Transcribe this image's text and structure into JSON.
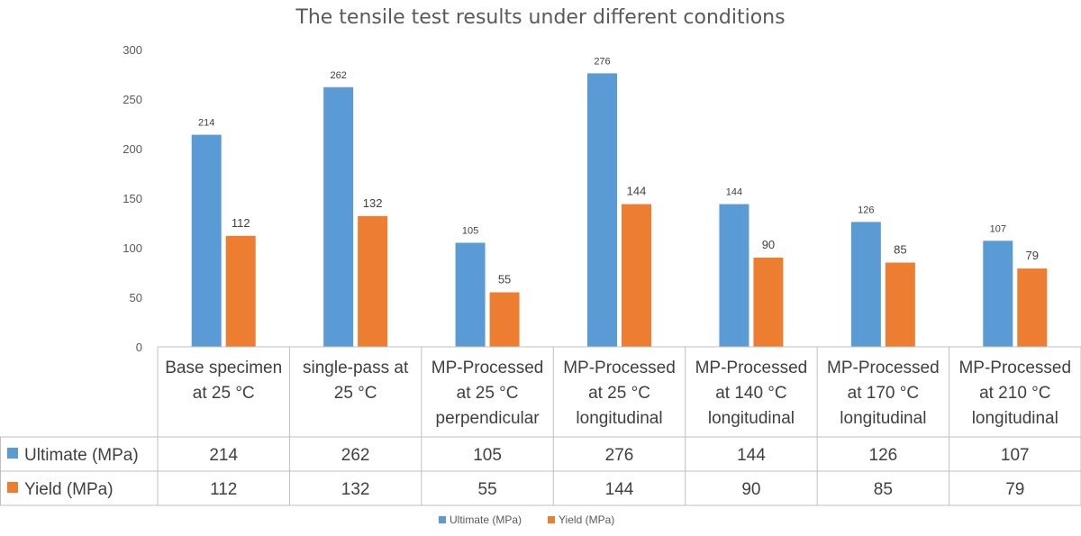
{
  "chart_data": {
    "type": "bar",
    "title": "The tensile test results under different conditions",
    "categories": [
      [
        "Base specimen",
        "at 25 °C"
      ],
      [
        "single-pass  at",
        "25 °C"
      ],
      [
        "MP-Processed",
        "at 25 °C",
        "perpendicular"
      ],
      [
        "MP-Processed",
        "at 25 °C",
        "longitudinal"
      ],
      [
        "MP-Processed",
        "at 140 °C",
        "longitudinal"
      ],
      [
        "MP-Processed",
        "at 170 °C",
        "longitudinal"
      ],
      [
        "MP-Processed",
        "at 210 °C",
        "longitudinal"
      ]
    ],
    "series": [
      {
        "name": "Ultimate  (MPa)",
        "color": "#5B9BD5",
        "values": [
          214,
          262,
          105,
          276,
          144,
          126,
          107
        ]
      },
      {
        "name": "Yield  (MPa)",
        "color": "#ED7D31",
        "values": [
          112,
          132,
          55,
          144,
          90,
          85,
          79
        ]
      }
    ],
    "ylim": [
      0,
      300
    ],
    "yticks": [
      0,
      50,
      100,
      150,
      200,
      250,
      300
    ],
    "grid": false,
    "data_table": true,
    "legend_position": "bottom"
  }
}
